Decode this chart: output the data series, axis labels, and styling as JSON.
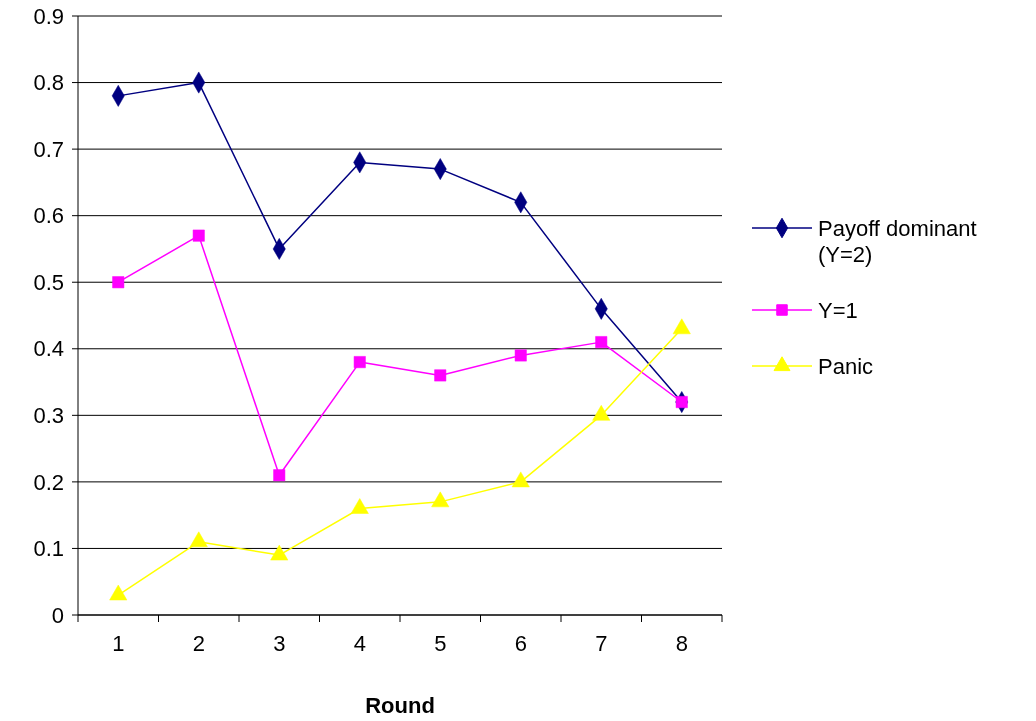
{
  "chart_data": {
    "type": "line",
    "xlabel": "Round",
    "categories": [
      "1",
      "2",
      "3",
      "4",
      "5",
      "6",
      "7",
      "8"
    ],
    "ylim": [
      0,
      0.9
    ],
    "yticks": [
      0,
      0.1,
      0.2,
      0.3,
      0.4,
      0.5,
      0.6,
      0.7,
      0.8,
      0.9
    ],
    "grid": "y",
    "legend": "right",
    "series": [
      {
        "name": "Payoff dominant (Y=2)",
        "color": "#000080",
        "marker": "diamond",
        "values": [
          0.78,
          0.8,
          0.55,
          0.68,
          0.67,
          0.62,
          0.46,
          0.32
        ]
      },
      {
        "name": "Y=1",
        "color": "#ff00ff",
        "marker": "square",
        "values": [
          0.5,
          0.57,
          0.21,
          0.38,
          0.36,
          0.39,
          0.41,
          0.32
        ]
      },
      {
        "name": "Panic",
        "color": "#ffff00",
        "marker": "triangle",
        "values": [
          0.03,
          0.11,
          0.09,
          0.16,
          0.17,
          0.2,
          0.3,
          0.43
        ]
      }
    ]
  }
}
